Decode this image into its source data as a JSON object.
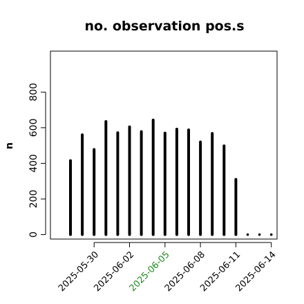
{
  "chart_data": {
    "type": "bar",
    "title": "no. observation pos.s",
    "ylabel": "n",
    "xlabel": "",
    "ylim": [
      -25,
      1030
    ],
    "yticks": [
      0,
      200,
      400,
      600,
      800
    ],
    "ytick_labels": [
      "0",
      "200",
      "400",
      "600",
      "800"
    ],
    "x": [
      "2025-05-28",
      "2025-05-29",
      "2025-05-30",
      "2025-05-31",
      "2025-06-01",
      "2025-06-02",
      "2025-06-03",
      "2025-06-04",
      "2025-06-05",
      "2025-06-06",
      "2025-06-07",
      "2025-06-08",
      "2025-06-09",
      "2025-06-10",
      "2025-06-11",
      "2025-06-12",
      "2025-06-13",
      "2025-06-14"
    ],
    "values": [
      415,
      560,
      478,
      635,
      572,
      605,
      578,
      643,
      570,
      592,
      588,
      520,
      568,
      498,
      310,
      0,
      0,
      0
    ],
    "grid": false,
    "legend": "none",
    "xtick_labels": [
      {
        "label": "2025-05-30",
        "color": "#000000"
      },
      {
        "label": "2025-06-02",
        "color": "#000000"
      },
      {
        "label": "2025-06-05",
        "color": "#228b22"
      },
      {
        "label": "2025-06-08",
        "color": "#000000"
      },
      {
        "label": "2025-06-11",
        "color": "#000000"
      },
      {
        "label": "2025-06-14",
        "color": "#000000"
      }
    ],
    "bar_color": "#000000"
  }
}
